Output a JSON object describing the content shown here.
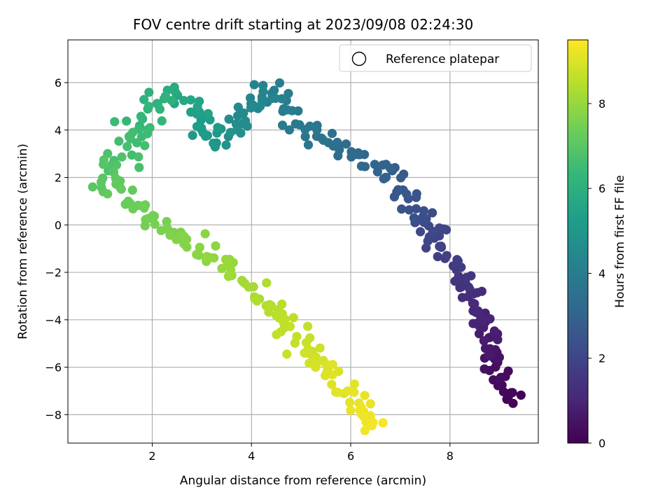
{
  "chart_data": {
    "type": "scatter",
    "title": "FOV centre drift starting at 2023/09/08 02:24:30",
    "xlabel": "Angular distance from reference (arcmin)",
    "ylabel": "Rotation from reference (arcmin)",
    "xlim": [
      0.3,
      9.78
    ],
    "ylim": [
      -9.2,
      7.8
    ],
    "xticks": [
      2,
      4,
      6,
      8
    ],
    "yticks": [
      -8,
      -6,
      -4,
      -2,
      0,
      2,
      4,
      6
    ],
    "grid": true,
    "legend": {
      "position": "top-right",
      "entries": [
        "Reference platepar"
      ]
    },
    "colorbar": {
      "label": "Hours from first FF file",
      "range": [
        0,
        9.5
      ],
      "ticks": [
        0,
        2,
        4,
        6,
        8
      ],
      "colormap": "viridis"
    },
    "trajectory": {
      "series": "FOV centre position, colored by hours from first FF file",
      "points": [
        [
          9.3,
          -7.4,
          0.0
        ],
        [
          9.05,
          -6.7,
          0.2
        ],
        [
          8.95,
          -6.0,
          0.4
        ],
        [
          8.85,
          -5.3,
          0.6
        ],
        [
          8.75,
          -4.5,
          0.8
        ],
        [
          8.6,
          -3.7,
          1.0
        ],
        [
          8.45,
          -3.0,
          1.2
        ],
        [
          8.3,
          -2.4,
          1.4
        ],
        [
          8.1,
          -1.9,
          1.6
        ],
        [
          7.85,
          -1.4,
          1.8
        ],
        [
          7.7,
          -0.5,
          2.0
        ],
        [
          7.5,
          0.2,
          2.2
        ],
        [
          7.25,
          0.8,
          2.4
        ],
        [
          7.05,
          1.4,
          2.6
        ],
        [
          6.85,
          2.1,
          2.8
        ],
        [
          6.55,
          2.4,
          3.0
        ],
        [
          6.2,
          2.8,
          3.2
        ],
        [
          5.85,
          3.4,
          3.4
        ],
        [
          5.45,
          3.7,
          3.6
        ],
        [
          5.1,
          4.2,
          3.8
        ],
        [
          4.8,
          4.6,
          3.95
        ],
        [
          4.5,
          5.4,
          4.1
        ],
        [
          4.25,
          5.7,
          4.25
        ],
        [
          4.0,
          4.8,
          4.45
        ],
        [
          3.8,
          4.1,
          4.65
        ],
        [
          3.55,
          3.6,
          4.85
        ],
        [
          3.25,
          3.5,
          5.05
        ],
        [
          2.95,
          4.6,
          5.3
        ],
        [
          2.75,
          5.1,
          5.55
        ],
        [
          2.45,
          5.6,
          5.8
        ],
        [
          2.15,
          5.3,
          6.05
        ],
        [
          1.85,
          4.6,
          6.3
        ],
        [
          1.65,
          4.0,
          6.5
        ],
        [
          1.45,
          3.0,
          6.7
        ],
        [
          1.2,
          2.5,
          6.85
        ],
        [
          1.0,
          2.2,
          7.0
        ],
        [
          1.15,
          1.7,
          7.1
        ],
        [
          1.45,
          1.2,
          7.25
        ],
        [
          1.85,
          0.6,
          7.4
        ],
        [
          2.25,
          0.1,
          7.55
        ],
        [
          2.65,
          -0.7,
          7.7
        ],
        [
          3.05,
          -1.2,
          7.85
        ],
        [
          3.45,
          -1.8,
          8.0
        ],
        [
          3.75,
          -2.5,
          8.15
        ],
        [
          4.05,
          -3.0,
          8.3
        ],
        [
          4.4,
          -3.4,
          8.45
        ],
        [
          4.75,
          -4.3,
          8.6
        ],
        [
          5.1,
          -5.1,
          8.75
        ],
        [
          5.45,
          -5.9,
          8.9
        ],
        [
          5.8,
          -6.6,
          9.05
        ],
        [
          6.15,
          -7.6,
          9.2
        ],
        [
          6.5,
          -8.5,
          9.4
        ]
      ]
    }
  },
  "colors": {
    "grid": "#b0b0b0",
    "axes": "#000000",
    "viridis": [
      "#440154",
      "#482878",
      "#3e4989",
      "#31688e",
      "#26828e",
      "#1f9e89",
      "#35b779",
      "#6ece58",
      "#b5de2b",
      "#fde725"
    ]
  }
}
